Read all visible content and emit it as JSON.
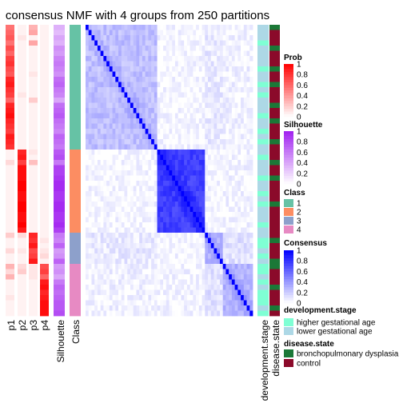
{
  "chart_data": {
    "type": "heatmap",
    "title": "consensus NMF with 4 groups from 250 partitions",
    "n_samples": 56,
    "class": [
      1,
      1,
      1,
      1,
      1,
      1,
      1,
      1,
      1,
      1,
      1,
      1,
      1,
      1,
      1,
      1,
      1,
      1,
      1,
      1,
      1,
      1,
      1,
      1,
      2,
      2,
      2,
      2,
      2,
      2,
      2,
      2,
      2,
      2,
      2,
      2,
      2,
      2,
      2,
      2,
      3,
      3,
      3,
      3,
      3,
      3,
      4,
      4,
      4,
      4,
      4,
      4,
      4,
      4,
      4,
      4
    ],
    "prob": {
      "p1": [
        0.55,
        0.6,
        0.65,
        0.55,
        0.7,
        0.6,
        0.75,
        0.8,
        0.7,
        0.65,
        0.85,
        0.9,
        0.8,
        0.75,
        0.6,
        0.85,
        0.9,
        0.95,
        0.85,
        0.8,
        0.75,
        0.9,
        0.85,
        0.8,
        0.05,
        0.05,
        0.15,
        0.05,
        0.05,
        0.05,
        0.05,
        0.05,
        0.05,
        0.05,
        0.05,
        0.05,
        0.05,
        0.05,
        0.05,
        0.05,
        0.2,
        0.05,
        0.05,
        0.15,
        0.05,
        0.05,
        0.3,
        0.15,
        0.3,
        0.05,
        0.05,
        0.05,
        0.1,
        0.05,
        0.05,
        0.05
      ],
      "p2": [
        0.05,
        0.05,
        0.1,
        0.05,
        0.05,
        0.05,
        0.05,
        0.05,
        0.05,
        0.05,
        0.05,
        0.05,
        0.05,
        0.1,
        0.05,
        0.05,
        0.05,
        0.05,
        0.05,
        0.05,
        0.05,
        0.05,
        0.05,
        0.05,
        0.85,
        0.9,
        0.75,
        0.95,
        0.95,
        0.95,
        1,
        1,
        0.95,
        0.95,
        1,
        1,
        0.95,
        0.95,
        1,
        0.9,
        0.15,
        0.05,
        0.05,
        0.1,
        0.05,
        0.05,
        0.15,
        0.2,
        0.05,
        0.05,
        0.05,
        0.05,
        0.05,
        0.05,
        0.05,
        0.05
      ],
      "p3": [
        0.3,
        0.35,
        0.05,
        0.35,
        0.05,
        0.05,
        0.05,
        0.05,
        0.05,
        0.1,
        0.05,
        0.05,
        0.05,
        0.05,
        0.2,
        0.05,
        0.05,
        0.05,
        0.05,
        0.05,
        0.05,
        0.05,
        0.05,
        0.05,
        0.1,
        0.05,
        0.25,
        0.05,
        0.05,
        0.05,
        0.05,
        0.05,
        0.05,
        0.05,
        0.05,
        0.05,
        0.05,
        0.05,
        0.05,
        0.05,
        0.85,
        0.8,
        0.9,
        0.7,
        0.75,
        0.9,
        0.1,
        0.1,
        0.1,
        0.05,
        0.05,
        0.05,
        0.05,
        0.05,
        0.05,
        0.05
      ],
      "p4": [
        0.05,
        0.05,
        0.05,
        0.05,
        0.05,
        0.05,
        0.05,
        0.05,
        0.05,
        0.05,
        0.05,
        0.05,
        0.05,
        0.05,
        0.05,
        0.05,
        0.05,
        0.05,
        0.05,
        0.05,
        0.05,
        0.05,
        0.05,
        0.05,
        0.05,
        0.05,
        0.05,
        0.05,
        0.05,
        0.05,
        0.05,
        0.05,
        0.05,
        0.05,
        0.05,
        0.05,
        0.05,
        0.05,
        0.05,
        0.05,
        0.05,
        0.1,
        0.05,
        0.1,
        0.15,
        0.05,
        0.7,
        0.75,
        0.6,
        0.9,
        0.95,
        0.85,
        0.9,
        0.95,
        0.95,
        0.95
      ]
    },
    "silhouette": [
      0.35,
      0.3,
      0.4,
      0.35,
      0.5,
      0.45,
      0.55,
      0.6,
      0.55,
      0.5,
      0.65,
      0.7,
      0.6,
      0.55,
      0.4,
      0.65,
      0.7,
      0.75,
      0.65,
      0.6,
      0.55,
      0.7,
      0.65,
      0.6,
      0.75,
      0.8,
      0.6,
      0.85,
      0.85,
      0.9,
      0.95,
      0.95,
      0.9,
      0.9,
      0.95,
      0.95,
      0.9,
      0.9,
      0.95,
      0.85,
      0.6,
      0.55,
      0.7,
      0.45,
      0.5,
      0.7,
      0.45,
      0.5,
      0.4,
      0.6,
      0.7,
      0.65,
      0.7,
      0.75,
      0.75,
      0.8
    ],
    "development_stage": [
      "lower",
      "lower",
      "lower",
      "higher",
      "lower",
      "lower",
      "lower",
      "lower",
      "higher",
      "lower",
      "lower",
      "higher",
      "lower",
      "higher",
      "lower",
      "lower",
      "lower",
      "higher",
      "lower",
      "lower",
      "higher",
      "lower",
      "higher",
      "lower",
      "lower",
      "higher",
      "lower",
      "lower",
      "lower",
      "higher",
      "lower",
      "lower",
      "higher",
      "lower",
      "higher",
      "lower",
      "lower",
      "lower",
      "higher",
      "lower",
      "lower",
      "higher",
      "higher",
      "lower",
      "higher",
      "lower",
      "higher",
      "higher",
      "lower",
      "higher",
      "lower",
      "higher",
      "higher",
      "higher",
      "lower",
      "higher"
    ],
    "disease_state": [
      "bpd",
      "control",
      "control",
      "control",
      "bpd",
      "control",
      "control",
      "control",
      "bpd",
      "control",
      "control",
      "bpd",
      "control",
      "control",
      "control",
      "bpd",
      "control",
      "control",
      "bpd",
      "control",
      "control",
      "control",
      "bpd",
      "control",
      "control",
      "control",
      "bpd",
      "control",
      "control",
      "bpd",
      "control",
      "control",
      "control",
      "control",
      "bpd",
      "control",
      "control",
      "control",
      "control",
      "control",
      "control",
      "bpd",
      "control",
      "control",
      "control",
      "bpd",
      "bpd",
      "control",
      "control",
      "control",
      "bpd",
      "control",
      "control",
      "control",
      "bpd",
      "control"
    ],
    "consensus_block": [
      [
        0.25,
        0.03,
        0.08,
        0.05
      ],
      [
        0.03,
        0.75,
        0.03,
        0.04
      ],
      [
        0.08,
        0.03,
        0.28,
        0.12
      ],
      [
        0.05,
        0.04,
        0.12,
        0.3
      ]
    ],
    "column_labels": {
      "p1": "p1",
      "p2": "p2",
      "p3": "p3",
      "p4": "p4",
      "silhouette": "Silhouette",
      "class": "Class",
      "development_stage": "development.stage",
      "disease_state": "disease.state"
    },
    "legends": {
      "prob": {
        "title": "Prob",
        "ticks": [
          "1",
          "0.8",
          "0.6",
          "0.4",
          "0.2",
          "0"
        ]
      },
      "silhouette": {
        "title": "Silhouette",
        "ticks": [
          "1",
          "0.8",
          "0.6",
          "0.4",
          "0.2",
          "0"
        ]
      },
      "class": {
        "title": "Class",
        "items": [
          "1",
          "2",
          "3",
          "4"
        ]
      },
      "consensus": {
        "title": "Consensus",
        "ticks": [
          "1",
          "0.8",
          "0.6",
          "0.4",
          "0.2",
          "0"
        ]
      },
      "development_stage": {
        "title": "development.stage",
        "items": [
          "higher gestational age",
          "lower gestational age"
        ]
      },
      "disease_state": {
        "title": "disease.state",
        "items": [
          "bronchopulmonary dysplasia",
          "control"
        ]
      }
    },
    "colors": {
      "prob_high": "#FF0000",
      "silhouette_high": "#A020F0",
      "consensus_high": "#0000FF",
      "class_1": "#66C2A5",
      "class_2": "#FC8D62",
      "class_3": "#8DA0CB",
      "class_4": "#E78AC3",
      "dev_higher": "#7FFFD4",
      "dev_lower": "#ADD8E6",
      "dis_bpd": "#1B7837",
      "dis_control": "#8B0A2A"
    }
  }
}
